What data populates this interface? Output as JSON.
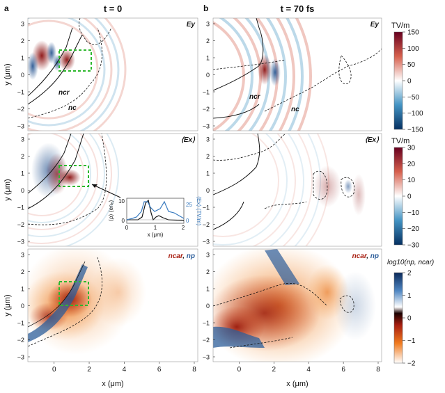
{
  "panels": {
    "a": {
      "letter": "a",
      "title": "t = 0"
    },
    "b": {
      "letter": "b",
      "title": "t = 70 fs"
    }
  },
  "row_labels": {
    "ey": "Ey",
    "ex": "⟨Ex⟩",
    "density": "ncar, np"
  },
  "density_label_parts": {
    "ncar": "ncar",
    "sep": ", ",
    "np": "np"
  },
  "contour_labels": {
    "ncr": "ncr",
    "nc": "nc"
  },
  "axes": {
    "ylabel": "y (μm)",
    "xlabel": "x (μm)",
    "yticks": [
      "3",
      "2",
      "1",
      "0",
      "−1",
      "−2",
      "−3"
    ],
    "xticks": [
      "0",
      "2",
      "4",
      "6",
      "8"
    ]
  },
  "colorbars": {
    "ey": {
      "unit": "TV/m",
      "ticks": [
        "150",
        "100",
        "50",
        "0",
        "−50",
        "−100",
        "−150"
      ]
    },
    "ex": {
      "unit": "TV/m",
      "ticks": [
        "30",
        "20",
        "10",
        "0",
        "−10",
        "−20",
        "−30"
      ]
    },
    "density": {
      "label": "log10(np, ncar)",
      "ticks": [
        "2",
        "1",
        "0",
        "−1",
        "−2"
      ]
    }
  },
  "inset": {
    "ylabel_left": "⟨ρ⟩ (enₑ)",
    "ylabel_right": "⟨Ex⟩ (TV/m)",
    "xlabel": "x (μm)",
    "left_ticks": [
      "10",
      "0"
    ],
    "right_ticks": [
      "25",
      "0"
    ],
    "x_ticks": [
      "0",
      "1",
      "2"
    ]
  },
  "colors": {
    "positive": "#8b1a1a",
    "negative": "#1f4e8c",
    "box": "#2eb82e",
    "density_orange": "#e8731a",
    "density_red": "#a81e10",
    "density_blue": "#2c5d9a",
    "inset_blue": "#3a7bbf"
  }
}
